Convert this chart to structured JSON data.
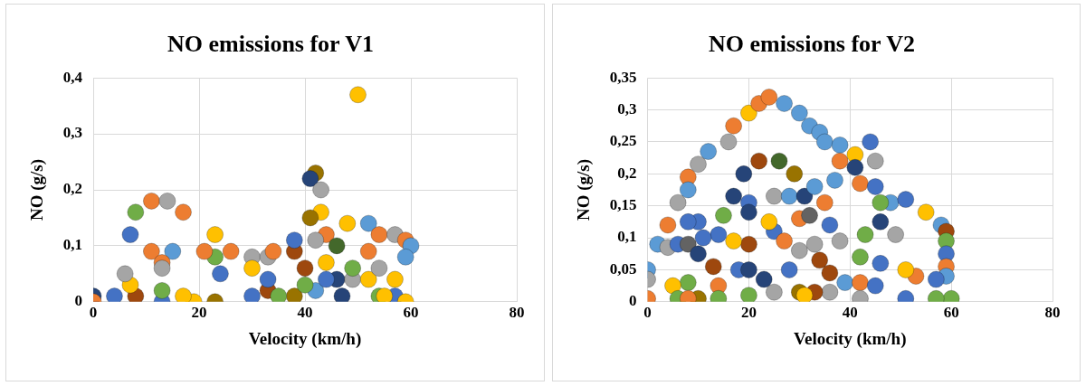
{
  "chart_data": [
    {
      "type": "scatter",
      "title": "NO emissions for V1",
      "xlabel": "Velocity (km/h)",
      "ylabel": "NO (g/s)",
      "marker": "circle",
      "grid": true,
      "xlim": [
        0,
        80
      ],
      "xticks": [
        0,
        20,
        40,
        60,
        80
      ],
      "ylim": [
        0,
        0.4
      ],
      "yticks": [
        {
          "value": 0,
          "label": "0"
        },
        {
          "value": 0.1,
          "label": "0,1"
        },
        {
          "value": 0.2,
          "label": "0,2"
        },
        {
          "value": 0.3,
          "label": "0,3"
        },
        {
          "value": 0.4,
          "label": "0,4"
        }
      ],
      "x": [
        50,
        42,
        41,
        43,
        43,
        41,
        48,
        52,
        54,
        57,
        59,
        60,
        59,
        8,
        11,
        14,
        17,
        7,
        11,
        15,
        13,
        13,
        23,
        23,
        26,
        21,
        24,
        30,
        30,
        33,
        34,
        38,
        38,
        44,
        42,
        46,
        40,
        44,
        46,
        49,
        49,
        52,
        52,
        54,
        57,
        57,
        59,
        54,
        47,
        42,
        38,
        33,
        33,
        35,
        23,
        19,
        17,
        13,
        13,
        8,
        7,
        6,
        4,
        0,
        0,
        30,
        40,
        44,
        55
      ],
      "values": [
        0.37,
        0.23,
        0.22,
        0.2,
        0.16,
        0.15,
        0.14,
        0.14,
        0.12,
        0.12,
        0.11,
        0.1,
        0.08,
        0.16,
        0.18,
        0.18,
        0.16,
        0.12,
        0.09,
        0.09,
        0.07,
        0.06,
        0.12,
        0.08,
        0.09,
        0.09,
        0.05,
        0.08,
        0.06,
        0.08,
        0.09,
        0.09,
        0.11,
        0.12,
        0.11,
        0.1,
        0.06,
        0.07,
        0.04,
        0.04,
        0.06,
        0.04,
        0.09,
        0.06,
        0.04,
        0.01,
        0,
        0.01,
        0.01,
        0.02,
        0.01,
        0.02,
        0.04,
        0.01,
        0,
        0,
        0.01,
        0,
        0.02,
        0.01,
        0.03,
        0.05,
        0.01,
        0.01,
        0,
        0.01,
        0.03,
        0.04,
        0.01
      ],
      "colors": [
        "#ffc000",
        "#997300",
        "#264478",
        "#a5a5a5",
        "#ffc000",
        "#997300",
        "#ffc000",
        "#5b9bd5",
        "#ed7d31",
        "#a5a5a5",
        "#ed7d31",
        "#5b9bd5",
        "#5b9bd5",
        "#70ad47",
        "#ed7d31",
        "#a5a5a5",
        "#ed7d31",
        "#4472c4",
        "#ed7d31",
        "#5b9bd5",
        "#ed7d31",
        "#a5a5a5",
        "#ffc000",
        "#70ad47",
        "#ed7d31",
        "#ed7d31",
        "#4472c4",
        "#a5a5a5",
        "#ffc000",
        "#a5a5a5",
        "#ed7d31",
        "#9e480e",
        "#4472c4",
        "#ed7d31",
        "#a5a5a5",
        "#43682b",
        "#9e480e",
        "#ffc000",
        "#264478",
        "#a5a5a5",
        "#70ad47",
        "#ffc000",
        "#ed7d31",
        "#a5a5a5",
        "#ffc000",
        "#4472c4",
        "#ffc000",
        "#70ad47",
        "#264478",
        "#5b9bd5",
        "#997300",
        "#9e480e",
        "#4472c4",
        "#70ad47",
        "#997300",
        "#ffc000",
        "#ffc000",
        "#4472c4",
        "#70ad47",
        "#9e480e",
        "#ffc000",
        "#a5a5a5",
        "#4472c4",
        "#264478",
        "#ed7d31",
        "#4472c4",
        "#70ad47",
        "#4472c4",
        "#ffc000"
      ]
    },
    {
      "type": "scatter",
      "title": "NO emissions for V2",
      "xlabel": "Velocity (km/h)",
      "ylabel": "NO (g/s)",
      "marker": "circle",
      "grid": true,
      "xlim": [
        0,
        80
      ],
      "xticks": [
        0,
        20,
        40,
        60,
        80
      ],
      "ylim": [
        0,
        0.35
      ],
      "yticks": [
        {
          "value": 0,
          "label": "0"
        },
        {
          "value": 0.05,
          "label": "0,05"
        },
        {
          "value": 0.1,
          "label": "0,1"
        },
        {
          "value": 0.15,
          "label": "0,15"
        },
        {
          "value": 0.2,
          "label": "0,2"
        },
        {
          "value": 0.25,
          "label": "0,25"
        },
        {
          "value": 0.3,
          "label": "0,3"
        },
        {
          "value": 0.35,
          "label": "0,35"
        }
      ],
      "x": [
        8,
        8,
        10,
        12,
        6,
        16,
        17,
        20,
        22,
        24,
        27,
        30,
        32,
        34,
        35,
        38,
        38,
        41,
        44,
        45,
        41,
        42,
        45,
        37,
        19,
        22,
        26,
        29,
        17,
        20,
        20,
        25,
        28,
        31,
        33,
        35,
        30,
        32,
        25,
        24,
        27,
        30,
        33,
        20,
        17,
        14,
        10,
        8,
        15,
        4,
        2,
        4,
        6,
        8,
        10,
        11,
        36,
        38,
        48,
        51,
        55,
        58,
        59,
        59,
        59,
        59,
        59,
        60,
        57,
        57,
        53,
        51,
        51,
        49,
        46,
        46,
        43,
        42,
        46,
        39,
        42,
        42,
        45,
        34,
        36,
        28,
        36,
        30,
        25,
        20,
        23,
        14,
        14,
        10,
        8,
        5,
        0,
        0,
        0,
        6,
        8,
        13,
        18,
        20,
        33,
        31
      ],
      "values": [
        0.195,
        0.175,
        0.215,
        0.235,
        0.155,
        0.25,
        0.275,
        0.295,
        0.31,
        0.32,
        0.31,
        0.295,
        0.275,
        0.265,
        0.25,
        0.245,
        0.22,
        0.23,
        0.25,
        0.22,
        0.21,
        0.185,
        0.18,
        0.19,
        0.2,
        0.22,
        0.22,
        0.2,
        0.165,
        0.155,
        0.14,
        0.165,
        0.165,
        0.165,
        0.18,
        0.155,
        0.13,
        0.135,
        0.11,
        0.125,
        0.095,
        0.08,
        0.09,
        0.09,
        0.095,
        0.105,
        0.125,
        0.125,
        0.135,
        0.12,
        0.09,
        0.085,
        0.09,
        0.09,
        0.075,
        0.1,
        0.12,
        0.095,
        0.155,
        0.16,
        0.14,
        0.12,
        0.11,
        0.095,
        0.075,
        0.055,
        0.04,
        0.005,
        0.005,
        0.035,
        0.04,
        0.05,
        0.005,
        0.105,
        0.155,
        0.125,
        0.105,
        0.07,
        0.06,
        0.03,
        0.03,
        0.005,
        0.025,
        0.065,
        0.045,
        0.05,
        0.015,
        0.015,
        0.015,
        0.01,
        0.035,
        0.025,
        0.005,
        0.005,
        0.03,
        0.025,
        0.005,
        0.05,
        0.035,
        0.005,
        0.005,
        0.055,
        0.05,
        0.05,
        0.015,
        0.01
      ],
      "colors": [
        "#ed7d31",
        "#5b9bd5",
        "#a5a5a5",
        "#5b9bd5",
        "#a5a5a5",
        "#a5a5a5",
        "#ed7d31",
        "#ffc000",
        "#ed7d31",
        "#ed7d31",
        "#5b9bd5",
        "#5b9bd5",
        "#5b9bd5",
        "#5b9bd5",
        "#5b9bd5",
        "#5b9bd5",
        "#ed7d31",
        "#ffc000",
        "#4472c4",
        "#a5a5a5",
        "#264478",
        "#ed7d31",
        "#4472c4",
        "#5b9bd5",
        "#264478",
        "#9e480e",
        "#43682b",
        "#997300",
        "#264478",
        "#4472c4",
        "#264478",
        "#a5a5a5",
        "#5b9bd5",
        "#264478",
        "#5b9bd5",
        "#ed7d31",
        "#ed7d31",
        "#636363",
        "#4472c4",
        "#ffc000",
        "#ed7d31",
        "#a5a5a5",
        "#a5a5a5",
        "#9e480e",
        "#ffc000",
        "#4472c4",
        "#4472c4",
        "#4472c4",
        "#70ad47",
        "#ed7d31",
        "#5b9bd5",
        "#a5a5a5",
        "#4472c4",
        "#636363",
        "#264478",
        "#4472c4",
        "#4472c4",
        "#a5a5a5",
        "#5b9bd5",
        "#4472c4",
        "#ffc000",
        "#5b9bd5",
        "#9e480e",
        "#70ad47",
        "#4472c4",
        "#ed7d31",
        "#5b9bd5",
        "#70ad47",
        "#70ad47",
        "#4472c4",
        "#ed7d31",
        "#ffc000",
        "#4472c4",
        "#a5a5a5",
        "#70ad47",
        "#264478",
        "#70ad47",
        "#70ad47",
        "#4472c4",
        "#5b9bd5",
        "#ed7d31",
        "#a5a5a5",
        "#4472c4",
        "#9e480e",
        "#9e480e",
        "#4472c4",
        "#a5a5a5",
        "#997300",
        "#a5a5a5",
        "#70ad47",
        "#264478",
        "#ed7d31",
        "#70ad47",
        "#997300",
        "#70ad47",
        "#ffc000",
        "#ed7d31",
        "#5b9bd5",
        "#a5a5a5",
        "#70ad47",
        "#ed7d31",
        "#9e480e",
        "#4472c4",
        "#264478",
        "#9e480e",
        "#ffc000"
      ]
    }
  ]
}
